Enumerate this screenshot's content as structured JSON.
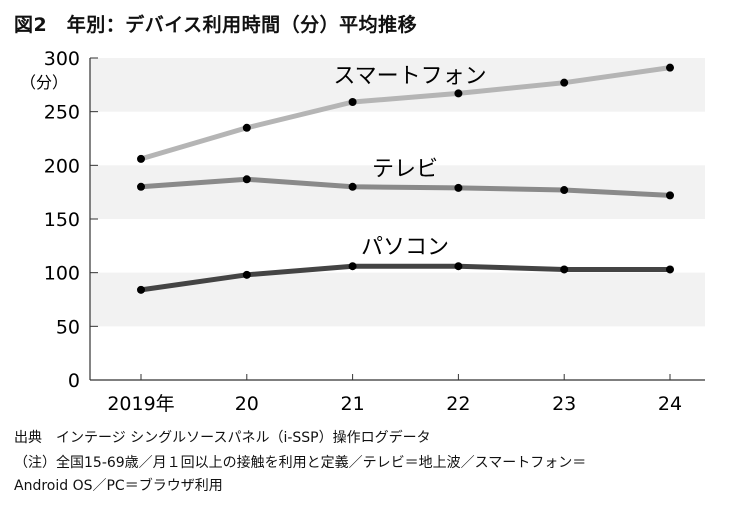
{
  "title": "図2　年別：デバイス利用時間（分）平均推移",
  "chart_data": {
    "type": "line",
    "title": "図2　年別：デバイス利用時間（分）平均推移",
    "ylabel": "（分）",
    "ylim": [
      0,
      300
    ],
    "yticks": [
      0,
      50,
      100,
      150,
      200,
      250,
      300
    ],
    "categories": [
      "2019年",
      "20",
      "21",
      "22",
      "23",
      "24"
    ],
    "grid": "alternating horizontal bands",
    "series": [
      {
        "name": "スマートフォン",
        "color": "#b5b5b5",
        "values": [
          206,
          235,
          259,
          267,
          277,
          291
        ]
      },
      {
        "name": "テレビ",
        "color": "#8a8a8a",
        "values": [
          180,
          187,
          180,
          179,
          177,
          172
        ]
      },
      {
        "name": "パソコン",
        "color": "#444444",
        "values": [
          84,
          98,
          106,
          106,
          103,
          103
        ]
      }
    ]
  },
  "notes": [
    "出典　インテージ シングルソースパネル（i-SSP）操作ログデータ",
    "（注）全国15-69歳／月１回以上の接触を利用と定義／テレビ＝地上波／スマートフォン＝",
    "Android OS／PC＝ブラウザ利用"
  ]
}
